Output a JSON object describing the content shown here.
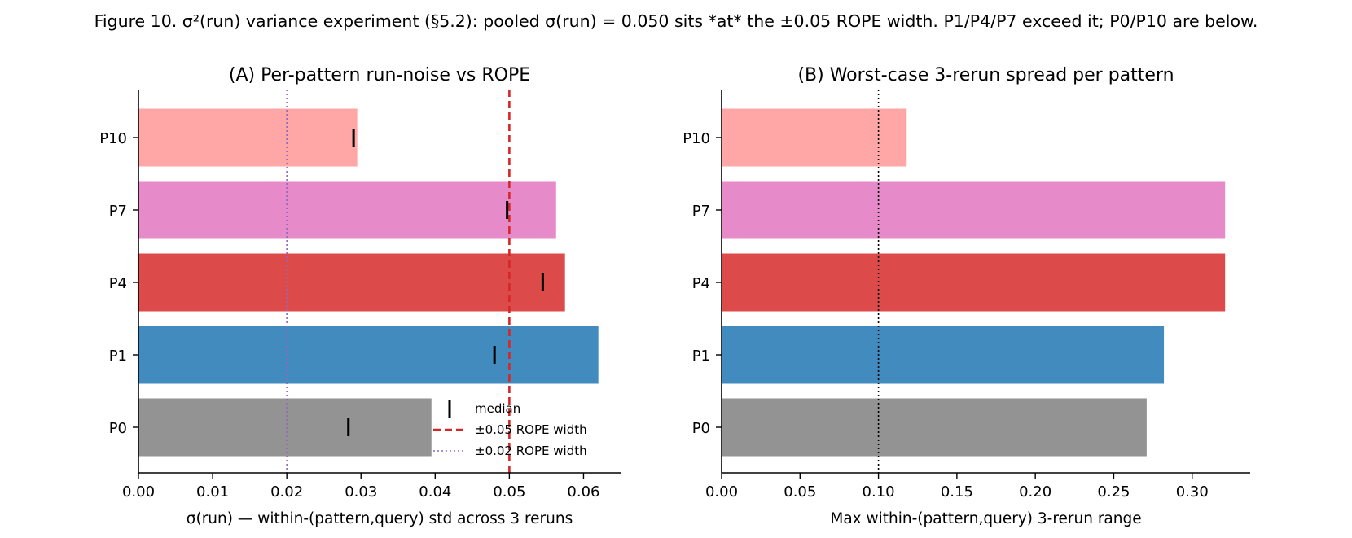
{
  "figure_title": "Figure 10. σ²(run) variance experiment (§5.2): pooled σ(run) = 0.050 sits *at* the ±0.05 ROPE width. P1/P4/P7 exceed it; P0/P10 are below.",
  "chart_data": [
    {
      "type": "bar",
      "orientation": "horizontal",
      "title": "(A) Per-pattern run-noise vs ROPE",
      "xlabel": "σ(run) — within-(pattern,query) std across 3 reruns",
      "ylabel": "",
      "categories": [
        "P0",
        "P1",
        "P4",
        "P7",
        "P10"
      ],
      "values": [
        0.0395,
        0.062,
        0.0575,
        0.0563,
        0.0295
      ],
      "medians": [
        0.0283,
        0.048,
        0.0545,
        0.0497,
        0.029
      ],
      "colors": [
        "#939393",
        "#428bbf",
        "#dc4a4a",
        "#e78ac9",
        "#ffa7a7"
      ],
      "xlim": [
        0,
        0.065
      ],
      "xticks": [
        0.0,
        0.01,
        0.02,
        0.03,
        0.04,
        0.05,
        0.06
      ],
      "xtick_labels": [
        "0.00",
        "0.01",
        "0.02",
        "0.03",
        "0.04",
        "0.05",
        "0.06"
      ],
      "reference_lines": [
        {
          "value": 0.05,
          "style": "dashed",
          "color": "#d62728",
          "label": "±0.05 ROPE width"
        },
        {
          "value": 0.02,
          "style": "dotted",
          "color": "#9467bd",
          "label": "±0.02 ROPE width"
        }
      ],
      "legend": {
        "placement": "lower-right",
        "entries": [
          "median",
          "±0.05 ROPE width",
          "±0.02 ROPE width"
        ]
      },
      "grid": false
    },
    {
      "type": "bar",
      "orientation": "horizontal",
      "title": "(B) Worst-case 3-rerun spread per pattern",
      "xlabel": "Max within-(pattern,query) 3-rerun range",
      "ylabel": "",
      "categories": [
        "P0",
        "P1",
        "P4",
        "P7",
        "P10"
      ],
      "values": [
        0.271,
        0.282,
        0.321,
        0.321,
        0.118
      ],
      "colors": [
        "#939393",
        "#428bbf",
        "#dc4a4a",
        "#e78ac9",
        "#ffa7a7"
      ],
      "xlim": [
        0,
        0.337
      ],
      "xticks": [
        0.0,
        0.05,
        0.1,
        0.15,
        0.2,
        0.25,
        0.3
      ],
      "xtick_labels": [
        "0.00",
        "0.05",
        "0.10",
        "0.15",
        "0.20",
        "0.25",
        "0.30"
      ],
      "reference_lines": [
        {
          "value": 0.1,
          "style": "dotted",
          "color": "#000000",
          "label": ""
        }
      ],
      "grid": false
    }
  ]
}
